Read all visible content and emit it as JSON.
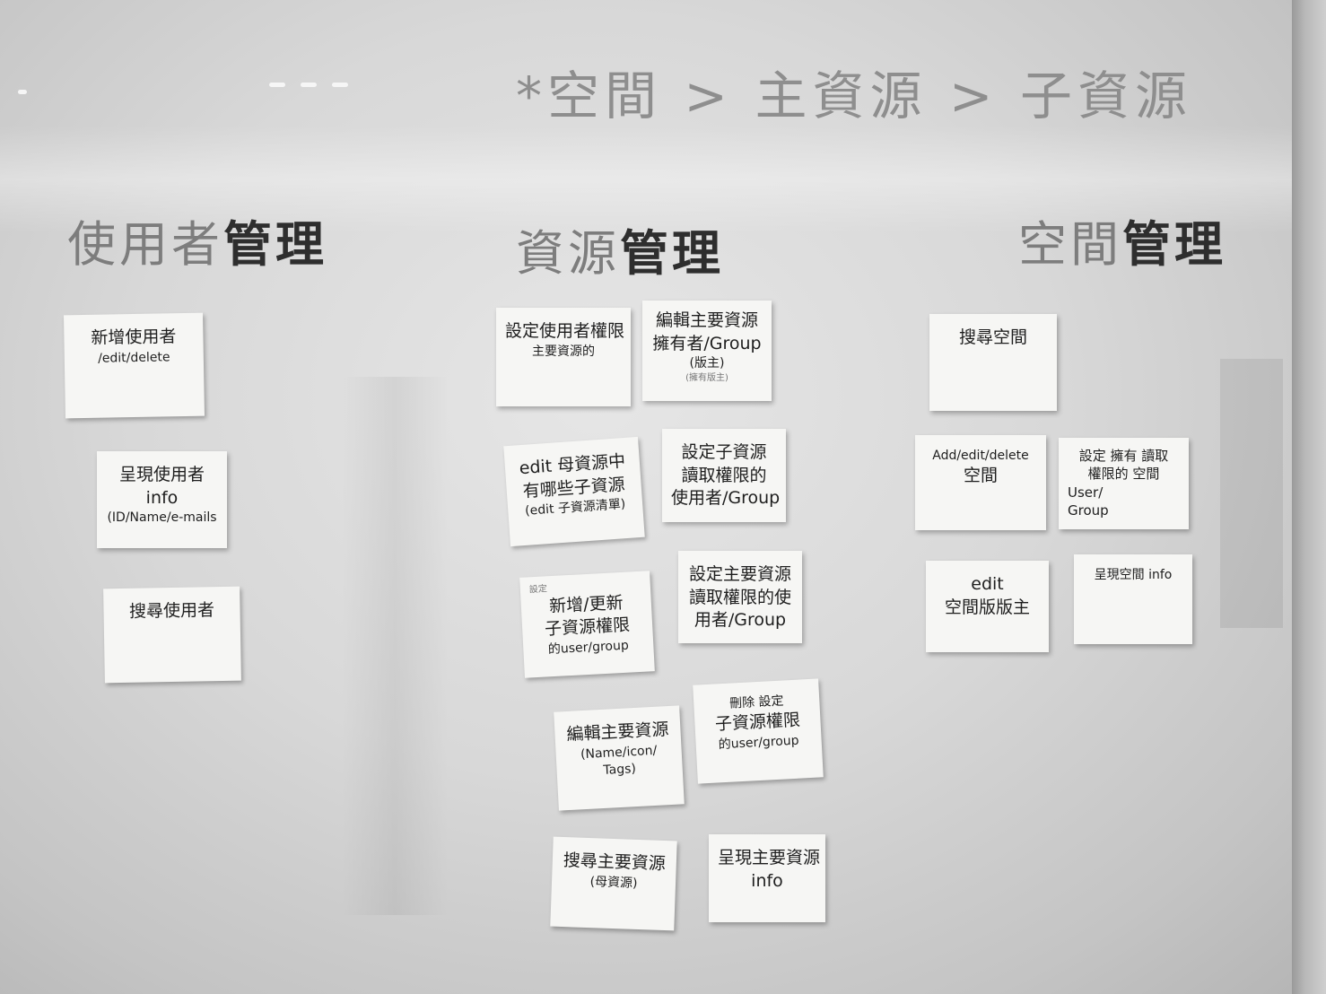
{
  "header": {
    "title": "*空間 > 主資源 > 子資源"
  },
  "columns": [
    {
      "title_light": "使用者",
      "title_dark": "管理",
      "notes": [
        {
          "lines": [
            "新增使用者",
            "/edit/delete"
          ]
        },
        {
          "lines": [
            "呈現使用者",
            "info",
            "(ID/Name/e-mails"
          ]
        },
        {
          "lines": [
            "搜尋使用者"
          ]
        }
      ]
    },
    {
      "title_light": "資源",
      "title_dark": "管理",
      "notes": [
        {
          "lines": [
            "設定使用者權限",
            "主要資源的"
          ]
        },
        {
          "lines": [
            "編輯主要資源",
            "擁有者/Group",
            "(版主)",
            "(擁有版主)"
          ]
        },
        {
          "lines": [
            "edit 母資源中",
            "有哪些子資源",
            "(edit 子資源清單)"
          ]
        },
        {
          "lines": [
            "設定子資源",
            "讀取權限的",
            "使用者/Group"
          ]
        },
        {
          "lines": [
            "設定",
            "新增/更新",
            "子資源權限",
            "的user/group"
          ]
        },
        {
          "lines": [
            "設定主要資源",
            "讀取權限的使",
            "用者/Group"
          ]
        },
        {
          "lines": [
            "編輯主要資源",
            "(Name/icon/",
            "Tags)"
          ]
        },
        {
          "lines": [
            "刪除 設定",
            "子資源權限",
            "的user/group"
          ]
        },
        {
          "lines": [
            "搜尋主要資源",
            "(母資源)"
          ]
        },
        {
          "lines": [
            "呈現主要資源",
            "info"
          ]
        }
      ]
    },
    {
      "title_light": "空間",
      "title_dark": "管理",
      "notes": [
        {
          "lines": [
            "搜尋空間"
          ]
        },
        {
          "lines": [
            "Add/edit/delete",
            "空間"
          ]
        },
        {
          "lines": [
            "設定 擁有 讀取",
            "權限的 空間",
            "User/",
            "Group"
          ]
        },
        {
          "lines": [
            "edit",
            "空間版版主"
          ]
        },
        {
          "lines": [
            "呈現空間 info"
          ]
        }
      ]
    }
  ]
}
